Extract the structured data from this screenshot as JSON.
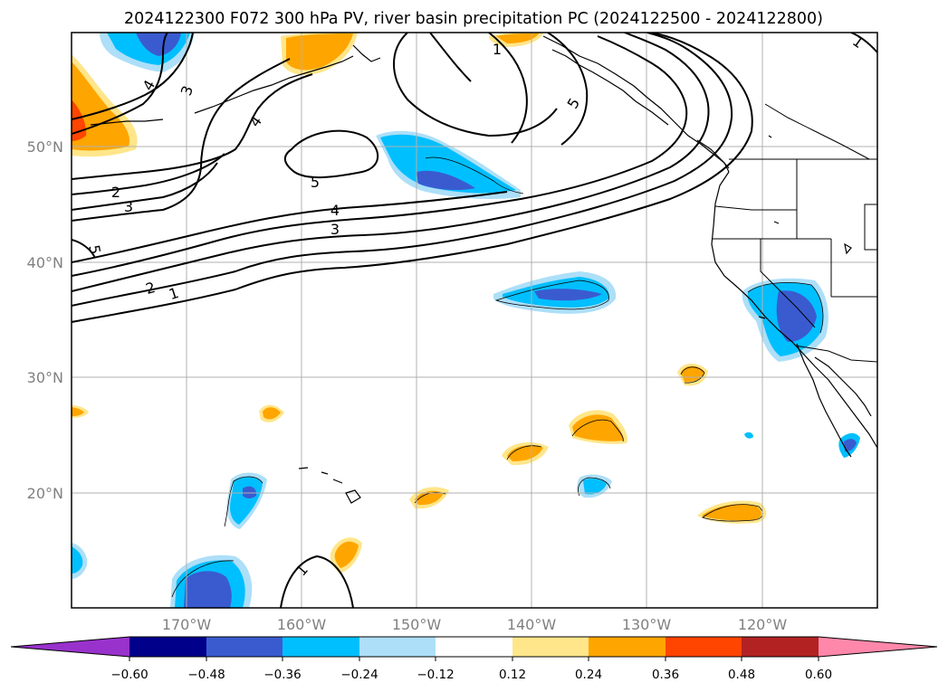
{
  "title": "2024122300 F072 300 hPa PV, river basin precipitation PC (2024122500 - 2024122800)",
  "lat_labels": [
    "50°N",
    "40°N",
    "30°N",
    "20°N"
  ],
  "lon_labels": [
    "170°W",
    "160°W",
    "150°W",
    "140°W",
    "130°W",
    "120°W"
  ],
  "pv_contour_labels": [
    "1",
    "2",
    "3",
    "4",
    "5",
    "4",
    "3",
    "2",
    "1",
    "5",
    "4",
    "3",
    "5",
    "1",
    "1"
  ],
  "colorbar": {
    "ticks": [
      "−0.60",
      "−0.48",
      "−0.36",
      "−0.24",
      "−0.12",
      "0.12",
      "0.24",
      "0.36",
      "0.48",
      "0.60"
    ],
    "colors": [
      "#9932CC",
      "#00008B",
      "#3A5BD0",
      "#00BFFF",
      "#ADDFF8",
      "#FFFFFF",
      "#FFE68A",
      "#FFA500",
      "#FF4500",
      "#B22222",
      "#FF88AA"
    ]
  }
}
